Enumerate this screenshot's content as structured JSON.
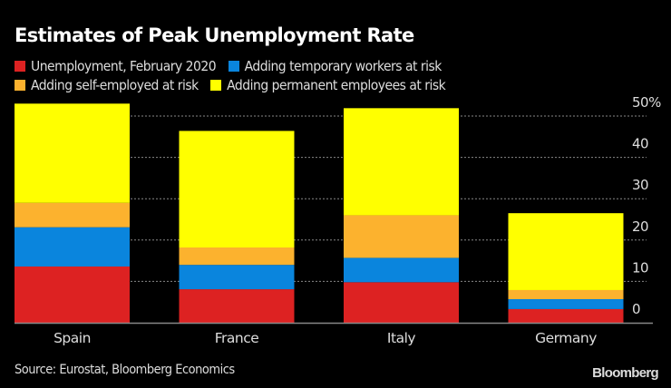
{
  "chart_data": {
    "type": "bar",
    "stacked": true,
    "title": "Estimates of Peak Unemployment Rate",
    "categories": [
      "Spain",
      "France",
      "Italy",
      "Germany"
    ],
    "series": [
      {
        "name": "Unemployment, February 2020",
        "color": "#dd2222",
        "values": [
          13.6,
          8.1,
          9.8,
          3.3
        ]
      },
      {
        "name": "Adding temporary workers at risk",
        "color": "#0a85dd",
        "values": [
          9.5,
          5.9,
          5.9,
          2.4
        ]
      },
      {
        "name": "Adding self-employed at risk",
        "color": "#fcb22e",
        "values": [
          5.9,
          4.2,
          10.3,
          2.2
        ]
      },
      {
        "name": "Adding permanent employees at risk",
        "color": "#ffff00",
        "values": [
          24.0,
          28.2,
          25.9,
          18.6
        ]
      }
    ],
    "yticks": [
      "0",
      "10",
      "20",
      "30",
      "40",
      "50%"
    ],
    "ytick_values": [
      0,
      10,
      20,
      30,
      40,
      50
    ],
    "ylim": [
      0,
      50
    ],
    "xlabel": "",
    "ylabel": "",
    "grid": true,
    "y_axis_side": "right",
    "legend_placement": "top-left",
    "source": "Source: Eurostat, Bloomberg Economics",
    "brand": "Bloomberg"
  }
}
